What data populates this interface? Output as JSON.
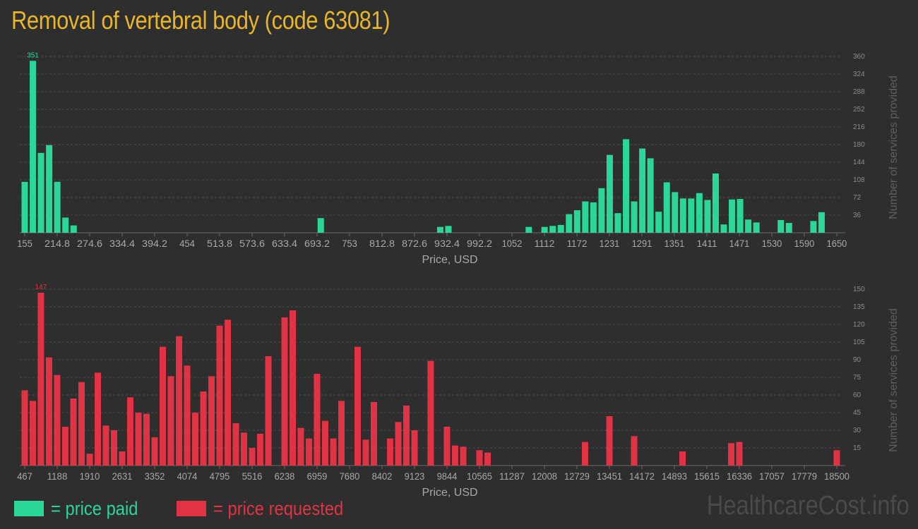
{
  "title": "Removal of vertebral body (code 63081)",
  "legend": {
    "paid_label": "= price paid",
    "requested_label": "= price requested",
    "paid_color": "#2bd699",
    "requested_color": "#e23345"
  },
  "watermark": "HealthcareCost.info",
  "chart_data": [
    {
      "type": "bar",
      "series_color": "#2bd699",
      "xlabel": "Price, USD",
      "ylabel": "Number of services provided",
      "x_range": [
        155,
        1650
      ],
      "ylim": [
        0,
        360
      ],
      "y_ticks": [
        "36",
        "72",
        "108",
        "144",
        "180",
        "216",
        "252",
        "288",
        "324",
        "360"
      ],
      "x_ticks": [
        "155",
        "214.8",
        "274.6",
        "334.4",
        "394.2",
        "454",
        "513.8",
        "573.6",
        "633.4",
        "693.2",
        "753",
        "812.8",
        "872.6",
        "932.4",
        "992.2",
        "1052",
        "1112",
        "1172",
        "1231",
        "1291",
        "1351",
        "1411",
        "1471",
        "1530",
        "1590",
        "1650"
      ],
      "max_label": "351",
      "grid": true,
      "bars": [
        [
          155,
          104
        ],
        [
          170,
          351
        ],
        [
          185,
          163
        ],
        [
          200,
          179
        ],
        [
          215,
          104
        ],
        [
          230,
          31
        ],
        [
          245,
          15
        ],
        [
          700,
          30
        ],
        [
          920,
          12
        ],
        [
          935,
          14
        ],
        [
          1083,
          12
        ],
        [
          1112,
          12
        ],
        [
          1127,
          14
        ],
        [
          1142,
          16
        ],
        [
          1157,
          38
        ],
        [
          1172,
          46
        ],
        [
          1187,
          64
        ],
        [
          1202,
          62
        ],
        [
          1217,
          91
        ],
        [
          1232,
          159
        ],
        [
          1247,
          40
        ],
        [
          1262,
          191
        ],
        [
          1277,
          64
        ],
        [
          1292,
          172
        ],
        [
          1307,
          152
        ],
        [
          1322,
          43
        ],
        [
          1337,
          103
        ],
        [
          1352,
          83
        ],
        [
          1367,
          70
        ],
        [
          1382,
          70
        ],
        [
          1397,
          81
        ],
        [
          1412,
          67
        ],
        [
          1427,
          121
        ],
        [
          1442,
          17
        ],
        [
          1457,
          68
        ],
        [
          1472,
          69
        ],
        [
          1487,
          27
        ],
        [
          1502,
          21
        ],
        [
          1547,
          26
        ],
        [
          1562,
          20
        ],
        [
          1607,
          24
        ],
        [
          1622,
          42
        ]
      ]
    },
    {
      "type": "bar",
      "series_color": "#e23345",
      "xlabel": "Price, USD",
      "ylabel": "Number of services provided",
      "x_range": [
        467,
        18500
      ],
      "ylim": [
        0,
        150
      ],
      "y_ticks": [
        "15",
        "30",
        "45",
        "60",
        "75",
        "90",
        "105",
        "120",
        "135",
        "150"
      ],
      "x_ticks": [
        "467",
        "1188",
        "1910",
        "2631",
        "3352",
        "4074",
        "4795",
        "5516",
        "6238",
        "6959",
        "7680",
        "8402",
        "9123",
        "9844",
        "10565",
        "11287",
        "12008",
        "12729",
        "13451",
        "14172",
        "14893",
        "15615",
        "16336",
        "17057",
        "17779",
        "18500"
      ],
      "max_label": "147",
      "grid": true,
      "bars": [
        [
          467,
          64
        ],
        [
          647,
          55
        ],
        [
          827,
          147
        ],
        [
          1008,
          92
        ],
        [
          1188,
          77
        ],
        [
          1368,
          33
        ],
        [
          1549,
          57
        ],
        [
          1729,
          71
        ],
        [
          1910,
          10
        ],
        [
          2090,
          79
        ],
        [
          2270,
          34
        ],
        [
          2451,
          30
        ],
        [
          2631,
          12
        ],
        [
          2811,
          58
        ],
        [
          2992,
          45
        ],
        [
          3172,
          44
        ],
        [
          3352,
          24
        ],
        [
          3533,
          101
        ],
        [
          3713,
          76
        ],
        [
          3894,
          110
        ],
        [
          4074,
          85
        ],
        [
          4254,
          45
        ],
        [
          4435,
          63
        ],
        [
          4615,
          76
        ],
        [
          4795,
          119
        ],
        [
          4976,
          124
        ],
        [
          5156,
          36
        ],
        [
          5336,
          28
        ],
        [
          5517,
          15
        ],
        [
          5697,
          27
        ],
        [
          5877,
          93
        ],
        [
          6238,
          126
        ],
        [
          6418,
          132
        ],
        [
          6598,
          32
        ],
        [
          6779,
          23
        ],
        [
          6959,
          78
        ],
        [
          7139,
          38
        ],
        [
          7320,
          23
        ],
        [
          7500,
          55
        ],
        [
          7860,
          101
        ],
        [
          8041,
          22
        ],
        [
          8221,
          54
        ],
        [
          8582,
          23
        ],
        [
          8762,
          37
        ],
        [
          8942,
          51
        ],
        [
          9123,
          30
        ],
        [
          9483,
          89
        ],
        [
          9844,
          33
        ],
        [
          10024,
          17
        ],
        [
          10205,
          16
        ],
        [
          10565,
          13
        ],
        [
          10746,
          11
        ],
        [
          12909,
          20
        ],
        [
          13451,
          42
        ],
        [
          14000,
          25
        ],
        [
          15074,
          12
        ],
        [
          16156,
          19
        ],
        [
          16336,
          20
        ],
        [
          18500,
          13
        ]
      ]
    }
  ]
}
